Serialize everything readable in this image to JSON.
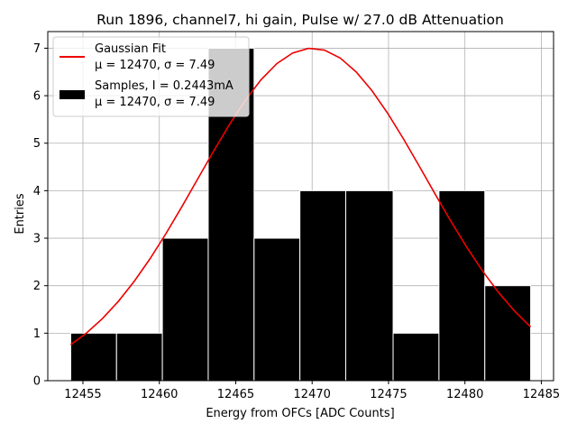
{
  "chart_data": {
    "type": "bar",
    "title": "Run 1896, channel7, hi gain, Pulse w/ 27.0 dB Attenuation",
    "xlabel": "Energy from OFCs [ADC Counts]",
    "ylabel": "Entries",
    "xlim": [
      12452.7,
      12485.8
    ],
    "ylim": [
      0,
      7.35
    ],
    "xticks": [
      12455,
      12460,
      12465,
      12470,
      12475,
      12480,
      12485
    ],
    "yticks": [
      0,
      1,
      2,
      3,
      4,
      5,
      6,
      7
    ],
    "grid": true,
    "legend_position": "top-left",
    "histogram": {
      "name": "Samples, I = 0.2443mA",
      "label_line2": "μ = 12470, σ = 7.49",
      "color": "#000000",
      "edge_color": "#ffffff",
      "bin_edges": [
        12454.2,
        12457.2,
        12460.2,
        12463.2,
        12466.2,
        12469.2,
        12472.2,
        12475.3,
        12478.3,
        12481.3,
        12484.3
      ],
      "counts": [
        1,
        1,
        3,
        7,
        3,
        4,
        4,
        1,
        4,
        2
      ]
    },
    "fit": {
      "name": "Gaussian Fit",
      "label_line2": "μ = 12470, σ = 7.49",
      "color": "#ee0000",
      "amplitude": 7.0,
      "mu": 12470,
      "sigma": 7.49,
      "x_range": [
        12454.2,
        12484.3
      ]
    }
  }
}
